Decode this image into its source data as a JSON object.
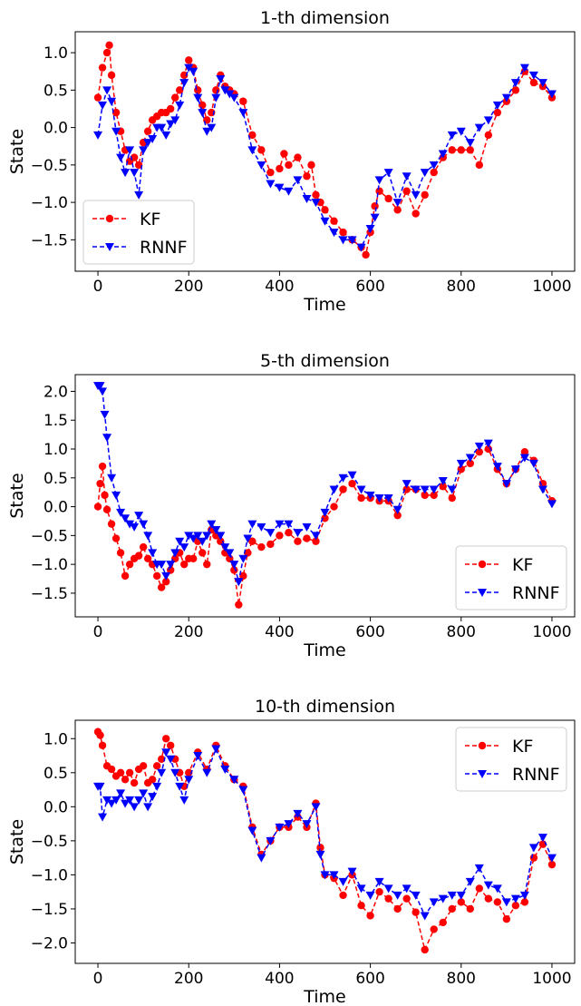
{
  "figure": {
    "background": "#ffffff",
    "series_colors": {
      "KF": "#ff0000",
      "RNNF": "#0000ff"
    }
  },
  "chart_data": [
    {
      "type": "line",
      "title": "1-th dimension",
      "xlabel": "Time",
      "ylabel": "State",
      "xlim": [
        -50,
        1050
      ],
      "ylim": [
        -1.92,
        1.28
      ],
      "xticks": [
        0,
        200,
        400,
        600,
        800,
        1000
      ],
      "xtick_labels": [
        "0",
        "200",
        "400",
        "600",
        "800",
        "1000"
      ],
      "yticks": [
        1.0,
        0.5,
        0.0,
        -0.5,
        -1.0,
        -1.5
      ],
      "ytick_labels": [
        "1.0",
        "0.5",
        "0.0",
        "−0.5",
        "−1.0",
        "−1.5"
      ],
      "legend": "lower-left",
      "grid": false,
      "series": [
        {
          "name": "KF",
          "color": "#ff0000",
          "marker": "circle",
          "linestyle": "dashed",
          "x": [
            0,
            10,
            20,
            25,
            30,
            40,
            50,
            60,
            70,
            80,
            90,
            100,
            110,
            120,
            130,
            140,
            150,
            160,
            170,
            180,
            190,
            200,
            210,
            220,
            230,
            240,
            250,
            260,
            270,
            280,
            290,
            300,
            320,
            340,
            360,
            380,
            400,
            410,
            420,
            440,
            460,
            470,
            480,
            490,
            500,
            520,
            540,
            560,
            580,
            590,
            600,
            610,
            620,
            640,
            660,
            680,
            700,
            720,
            740,
            760,
            780,
            800,
            820,
            840,
            860,
            880,
            900,
            920,
            940,
            960,
            980,
            1000
          ],
          "values": [
            0.4,
            0.8,
            1.0,
            1.1,
            0.7,
            0.2,
            -0.05,
            -0.3,
            -0.45,
            -0.4,
            -0.5,
            -0.2,
            -0.05,
            0.1,
            0.15,
            0.2,
            0.2,
            0.25,
            0.4,
            0.5,
            0.7,
            0.9,
            0.8,
            0.5,
            0.3,
            0.1,
            0.2,
            0.5,
            0.7,
            0.55,
            0.5,
            0.45,
            0.35,
            -0.1,
            -0.3,
            -0.6,
            -0.55,
            -0.35,
            -0.5,
            -0.4,
            -0.65,
            -0.5,
            -0.9,
            -1.0,
            -1.1,
            -1.25,
            -1.4,
            -1.5,
            -1.6,
            -1.7,
            -1.4,
            -1.05,
            -0.85,
            -0.95,
            -1.1,
            -0.85,
            -1.15,
            -0.9,
            -0.6,
            -0.4,
            -0.3,
            -0.3,
            -0.3,
            -0.5,
            -0.1,
            0.2,
            0.35,
            0.5,
            0.75,
            0.6,
            0.55,
            0.4
          ]
        },
        {
          "name": "RNNF",
          "color": "#0000ff",
          "marker": "triangle-down",
          "linestyle": "dashed",
          "x": [
            0,
            10,
            20,
            30,
            40,
            50,
            60,
            70,
            80,
            90,
            100,
            110,
            120,
            130,
            140,
            150,
            160,
            170,
            180,
            190,
            200,
            210,
            220,
            230,
            240,
            250,
            260,
            270,
            280,
            290,
            300,
            320,
            340,
            360,
            380,
            400,
            420,
            440,
            460,
            480,
            500,
            520,
            540,
            560,
            580,
            600,
            610,
            620,
            640,
            660,
            680,
            700,
            720,
            740,
            760,
            780,
            800,
            820,
            840,
            860,
            880,
            900,
            920,
            940,
            960,
            980,
            1000
          ],
          "values": [
            -0.1,
            0.3,
            0.5,
            0.35,
            -0.05,
            -0.4,
            -0.6,
            -0.3,
            -0.6,
            -0.9,
            -0.3,
            -0.2,
            -0.15,
            0.0,
            0.0,
            -0.1,
            0.05,
            0.1,
            0.3,
            0.6,
            0.8,
            0.75,
            0.4,
            0.2,
            -0.05,
            0.0,
            0.4,
            0.65,
            0.5,
            0.45,
            0.4,
            0.2,
            -0.3,
            -0.5,
            -0.75,
            -0.8,
            -0.85,
            -0.7,
            -0.95,
            -1.0,
            -1.25,
            -1.4,
            -1.5,
            -1.5,
            -1.6,
            -1.35,
            -1.2,
            -0.7,
            -0.6,
            -1.0,
            -0.65,
            -0.9,
            -0.6,
            -0.5,
            -0.35,
            -0.1,
            -0.05,
            -0.2,
            0.0,
            0.1,
            0.3,
            0.4,
            0.6,
            0.8,
            0.7,
            0.6,
            0.45
          ]
        }
      ]
    },
    {
      "type": "line",
      "title": "5-th dimension",
      "xlabel": "Time",
      "ylabel": "State",
      "xlim": [
        -50,
        1050
      ],
      "ylim": [
        -1.91,
        2.29
      ],
      "xticks": [
        0,
        200,
        400,
        600,
        800,
        1000
      ],
      "xtick_labels": [
        "0",
        "200",
        "400",
        "600",
        "800",
        "1000"
      ],
      "yticks": [
        2.0,
        1.5,
        1.0,
        0.5,
        0.0,
        -0.5,
        -1.0,
        -1.5
      ],
      "ytick_labels": [
        "2.0",
        "1.5",
        "1.0",
        "0.5",
        "0.0",
        "−0.5",
        "−1.0",
        "−1.5"
      ],
      "legend": "lower-right",
      "grid": false,
      "series": [
        {
          "name": "KF",
          "color": "#ff0000",
          "marker": "circle",
          "linestyle": "dashed",
          "x": [
            0,
            5,
            10,
            15,
            20,
            30,
            40,
            50,
            60,
            70,
            80,
            90,
            100,
            110,
            120,
            130,
            140,
            150,
            160,
            170,
            180,
            190,
            200,
            210,
            220,
            230,
            240,
            250,
            260,
            270,
            280,
            290,
            300,
            310,
            320,
            330,
            340,
            360,
            380,
            400,
            420,
            440,
            460,
            480,
            500,
            520,
            540,
            560,
            580,
            600,
            620,
            640,
            660,
            680,
            700,
            720,
            740,
            760,
            780,
            800,
            820,
            840,
            860,
            880,
            900,
            920,
            940,
            960,
            980,
            1000
          ],
          "values": [
            0.0,
            0.4,
            0.7,
            0.2,
            -0.05,
            -0.3,
            -0.55,
            -0.8,
            -1.2,
            -1.0,
            -0.9,
            -0.85,
            -0.7,
            -0.9,
            -1.0,
            -1.2,
            -1.4,
            -1.3,
            -1.1,
            -0.9,
            -0.8,
            -1.0,
            -0.9,
            -0.9,
            -0.6,
            -0.8,
            -1.0,
            -0.4,
            -0.5,
            -0.6,
            -0.8,
            -0.9,
            -1.1,
            -1.7,
            -1.2,
            -0.8,
            -0.6,
            -0.7,
            -0.65,
            -0.5,
            -0.45,
            -0.6,
            -0.55,
            -0.6,
            -0.2,
            0.0,
            0.3,
            0.4,
            0.15,
            0.15,
            0.1,
            0.1,
            -0.15,
            0.3,
            0.3,
            0.2,
            0.2,
            0.35,
            0.15,
            0.65,
            0.75,
            0.95,
            1.0,
            0.65,
            0.4,
            0.65,
            0.95,
            0.8,
            0.4,
            0.1
          ]
        },
        {
          "name": "RNNF",
          "color": "#0000ff",
          "marker": "triangle-down",
          "linestyle": "dashed",
          "x": [
            0,
            5,
            10,
            15,
            20,
            30,
            40,
            50,
            60,
            70,
            80,
            90,
            100,
            110,
            120,
            130,
            140,
            150,
            160,
            170,
            180,
            190,
            200,
            210,
            220,
            230,
            240,
            250,
            260,
            270,
            280,
            290,
            300,
            310,
            320,
            330,
            340,
            360,
            380,
            400,
            420,
            440,
            460,
            480,
            500,
            520,
            540,
            560,
            580,
            600,
            620,
            640,
            660,
            680,
            700,
            720,
            740,
            760,
            780,
            800,
            820,
            840,
            860,
            880,
            900,
            920,
            940,
            960,
            980,
            1000
          ],
          "values": [
            2.1,
            2.1,
            2.0,
            1.6,
            1.2,
            0.5,
            0.2,
            -0.1,
            -0.2,
            -0.3,
            -0.35,
            -0.15,
            -0.3,
            -0.5,
            -0.8,
            -1.0,
            -1.0,
            -1.2,
            -1.0,
            -0.8,
            -0.6,
            -0.7,
            -0.5,
            -0.55,
            -0.5,
            -0.6,
            -0.5,
            -0.3,
            -0.4,
            -0.5,
            -0.7,
            -0.8,
            -1.0,
            -1.3,
            -0.9,
            -0.55,
            -0.3,
            -0.35,
            -0.45,
            -0.3,
            -0.3,
            -0.45,
            -0.35,
            -0.5,
            -0.1,
            0.3,
            0.5,
            0.55,
            0.3,
            0.2,
            0.15,
            0.15,
            -0.05,
            0.4,
            0.3,
            0.3,
            0.3,
            0.45,
            0.3,
            0.75,
            0.85,
            1.05,
            1.1,
            0.7,
            0.4,
            0.65,
            0.85,
            0.75,
            0.3,
            0.05
          ]
        }
      ]
    },
    {
      "type": "line",
      "title": "10-th dimension",
      "xlabel": "Time",
      "ylabel": "State",
      "xlim": [
        -50,
        1050
      ],
      "ylim": [
        -2.3,
        1.27
      ],
      "xticks": [
        0,
        200,
        400,
        600,
        800,
        1000
      ],
      "xtick_labels": [
        "0",
        "200",
        "400",
        "600",
        "800",
        "1000"
      ],
      "yticks": [
        1.0,
        0.5,
        0.0,
        -0.5,
        -1.0,
        -1.5,
        -2.0
      ],
      "ytick_labels": [
        "1.0",
        "0.5",
        "0.0",
        "−0.5",
        "−1.0",
        "−1.5",
        "−2.0"
      ],
      "legend": "upper-right",
      "grid": false,
      "series": [
        {
          "name": "KF",
          "color": "#ff0000",
          "marker": "circle",
          "linestyle": "dashed",
          "x": [
            0,
            5,
            10,
            20,
            30,
            40,
            50,
            60,
            70,
            80,
            90,
            100,
            110,
            120,
            130,
            140,
            150,
            160,
            170,
            180,
            190,
            200,
            220,
            240,
            260,
            280,
            300,
            320,
            340,
            360,
            380,
            400,
            420,
            440,
            460,
            480,
            490,
            500,
            520,
            540,
            560,
            580,
            600,
            620,
            640,
            660,
            680,
            700,
            720,
            740,
            760,
            780,
            800,
            820,
            840,
            860,
            880,
            900,
            920,
            940,
            960,
            980,
            1000
          ],
          "values": [
            1.1,
            1.05,
            0.9,
            0.6,
            0.55,
            0.45,
            0.5,
            0.4,
            0.5,
            0.35,
            0.55,
            0.6,
            0.35,
            0.4,
            0.6,
            0.7,
            1.0,
            0.9,
            0.7,
            0.5,
            0.3,
            0.5,
            0.8,
            0.55,
            0.9,
            0.6,
            0.4,
            0.3,
            -0.3,
            -0.7,
            -0.5,
            -0.3,
            -0.3,
            -0.15,
            -0.3,
            0.05,
            -0.6,
            -1.0,
            -1.05,
            -1.3,
            -1.0,
            -1.45,
            -1.6,
            -1.25,
            -1.35,
            -1.5,
            -1.35,
            -1.55,
            -2.1,
            -1.8,
            -1.7,
            -1.5,
            -1.4,
            -1.5,
            -1.2,
            -1.35,
            -1.4,
            -1.65,
            -1.45,
            -1.4,
            -0.75,
            -0.55,
            -0.85
          ]
        },
        {
          "name": "RNNF",
          "color": "#0000ff",
          "marker": "triangle-down",
          "linestyle": "dashed",
          "x": [
            0,
            5,
            10,
            20,
            30,
            40,
            50,
            60,
            70,
            80,
            90,
            100,
            110,
            120,
            130,
            140,
            150,
            160,
            170,
            180,
            190,
            200,
            220,
            240,
            260,
            280,
            300,
            320,
            340,
            360,
            380,
            400,
            420,
            440,
            460,
            480,
            490,
            500,
            520,
            540,
            560,
            580,
            600,
            620,
            640,
            660,
            680,
            700,
            720,
            740,
            760,
            780,
            800,
            820,
            840,
            860,
            880,
            900,
            920,
            940,
            960,
            980,
            1000
          ],
          "values": [
            0.3,
            0.3,
            -0.15,
            0.1,
            0.05,
            0.1,
            0.2,
            0.05,
            0.1,
            0.0,
            0.1,
            0.2,
            0.0,
            0.15,
            0.3,
            0.5,
            0.8,
            0.7,
            0.5,
            0.3,
            0.1,
            0.4,
            0.75,
            0.5,
            0.85,
            0.55,
            0.4,
            0.25,
            -0.35,
            -0.75,
            -0.5,
            -0.3,
            -0.25,
            -0.1,
            -0.25,
            0.0,
            -0.7,
            -1.0,
            -1.0,
            -1.1,
            -0.95,
            -1.2,
            -1.3,
            -1.1,
            -1.2,
            -1.3,
            -1.2,
            -1.3,
            -1.6,
            -1.4,
            -1.35,
            -1.3,
            -1.3,
            -1.1,
            -0.9,
            -1.15,
            -1.2,
            -1.4,
            -1.35,
            -1.3,
            -0.6,
            -0.45,
            -0.75
          ]
        }
      ]
    }
  ]
}
